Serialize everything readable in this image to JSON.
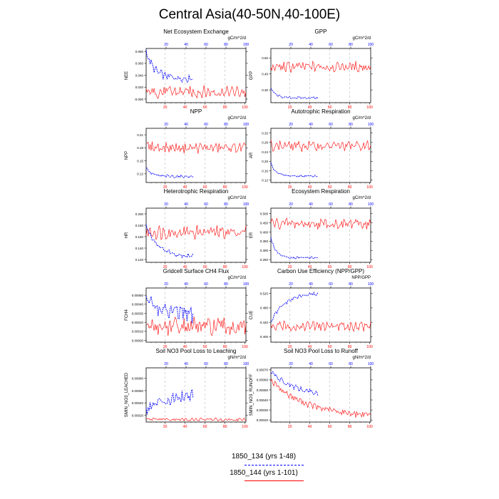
{
  "title": "Central Asia(40-50N,40-100E)",
  "colors": {
    "series_a": "#0000ff",
    "series_b": "#ff0000",
    "grid": "#bbbbbb"
  },
  "legend": {
    "entries": [
      {
        "label": "1850_134 (yrs 1-48)",
        "color": "#0000ff",
        "style": "dashed"
      },
      {
        "label": "1850_144 (yrs 1-101)",
        "color": "#ff0000",
        "style": "solid"
      }
    ]
  },
  "chart_data": [
    {
      "type": "line",
      "title": "Net Ecosystem Exchange",
      "units": "gC/m^2/d",
      "ylabel": "NEE",
      "xlim": [
        1,
        101
      ],
      "xticks": [
        20,
        40,
        60,
        80,
        100
      ],
      "ylim": [
        -0.006,
        0.085
      ],
      "yticks": [
        -0.0,
        0.02,
        0.04,
        0.06,
        0.08
      ],
      "ytick_labels": [
        "-0.000",
        "0.020",
        "0.040",
        "0.060",
        "0.080"
      ],
      "series": [
        {
          "years": 48,
          "start": 0.08,
          "end": 0.035,
          "decay": 8,
          "noise": 0.008
        },
        {
          "years": 101,
          "start": 0.012,
          "end": 0.012,
          "decay": 10,
          "noise": 0.012
        }
      ]
    },
    {
      "type": "line",
      "title": "GPP",
      "units": "gC/m^2/d",
      "ylabel": "GPP",
      "xlim": [
        1,
        101
      ],
      "xticks": [
        20,
        40,
        60,
        80,
        100
      ],
      "ylim": [
        0.22,
        0.56
      ],
      "yticks": [
        0.3,
        0.4,
        0.5
      ],
      "ytick_labels": [
        "0.30",
        "0.40",
        "0.50"
      ],
      "series": [
        {
          "years": 48,
          "start": 0.31,
          "end": 0.25,
          "decay": 5,
          "noise": 0.008
        },
        {
          "years": 101,
          "start": 0.44,
          "end": 0.445,
          "decay": 10,
          "noise": 0.04
        }
      ]
    },
    {
      "type": "line",
      "title": "NPP",
      "units": "gC/m^2/d",
      "ylabel": "NPP",
      "xlim": [
        1,
        101
      ],
      "xticks": [
        20,
        40,
        60,
        80,
        100
      ],
      "ylim": [
        0.1,
        0.225
      ],
      "yticks": [
        0.12,
        0.15,
        0.18,
        0.21
      ],
      "ytick_labels": [
        "0.12",
        "0.15",
        "0.18",
        "0.21"
      ],
      "series": [
        {
          "years": 48,
          "start": 0.135,
          "end": 0.114,
          "decay": 5,
          "noise": 0.004
        },
        {
          "years": 101,
          "start": 0.184,
          "end": 0.18,
          "decay": 10,
          "noise": 0.014
        }
      ]
    },
    {
      "type": "line",
      "title": "Autotrophic Respiration",
      "units": "gC/m^2/d",
      "ylabel": "AR",
      "xlim": [
        1,
        101
      ],
      "xticks": [
        20,
        40,
        60,
        80,
        100
      ],
      "ylim": [
        0.11,
        0.34
      ],
      "yticks": [
        0.12,
        0.16,
        0.2,
        0.24,
        0.28,
        0.32
      ],
      "ytick_labels": [
        "0.12",
        "0.16",
        "0.20",
        "0.24",
        "0.28",
        "0.32"
      ],
      "series": [
        {
          "years": 48,
          "start": 0.19,
          "end": 0.137,
          "decay": 5,
          "noise": 0.005
        },
        {
          "years": 101,
          "start": 0.268,
          "end": 0.265,
          "decay": 10,
          "noise": 0.026
        }
      ]
    },
    {
      "type": "line",
      "title": "Heterotrophic Respiration",
      "units": "gC/m^2/d",
      "ylabel": "HR",
      "xlim": [
        1,
        101
      ],
      "xticks": [
        20,
        40,
        60,
        80,
        100
      ],
      "ylim": [
        0.115,
        0.21
      ],
      "yticks": [
        0.12,
        0.14,
        0.16,
        0.18,
        0.2
      ],
      "ytick_labels": [
        "0.120",
        "0.140",
        "0.160",
        "0.180",
        "0.200"
      ],
      "series": [
        {
          "years": 48,
          "start": 0.18,
          "end": 0.125,
          "decay": 12,
          "noise": 0.005
        },
        {
          "years": 101,
          "start": 0.168,
          "end": 0.168,
          "decay": 10,
          "noise": 0.014
        }
      ]
    },
    {
      "type": "line",
      "title": "Ecosystem Respiration",
      "units": "gC/m^2/d",
      "ylabel": "ER",
      "xlim": [
        1,
        101
      ],
      "xticks": [
        20,
        40,
        60,
        80,
        100
      ],
      "ylim": [
        0.235,
        0.53
      ],
      "yticks": [
        0.25,
        0.3,
        0.35,
        0.4,
        0.45,
        0.5
      ],
      "ytick_labels": [
        "0.250",
        "0.300",
        "0.350",
        "0.400",
        "0.450",
        "0.500"
      ],
      "series": [
        {
          "years": 48,
          "start": 0.37,
          "end": 0.26,
          "decay": 5,
          "noise": 0.008
        },
        {
          "years": 101,
          "start": 0.45,
          "end": 0.445,
          "decay": 10,
          "noise": 0.035
        }
      ]
    },
    {
      "type": "line",
      "title": "Gridcell Surface CH4 Flux",
      "units": "gC/m^2/d",
      "ylabel": "FCH4",
      "xlim": [
        1,
        101
      ],
      "xticks": [
        20,
        40,
        60,
        80,
        100
      ],
      "ylim": [
        -2e-05,
        0.00058
      ],
      "yticks": [
        0.0,
        0.0001,
        0.0002,
        0.0003,
        0.0004,
        0.0005
      ],
      "ytick_labels": [
        "0.00000",
        "0.00010",
        "0.00020",
        "0.00030",
        "0.00040",
        "0.00050"
      ],
      "series": [
        {
          "years": 48,
          "start": 0.00045,
          "end": 0.00028,
          "decay": 15,
          "noise": 0.00012
        },
        {
          "years": 101,
          "start": 0.00016,
          "end": 0.00015,
          "decay": 10,
          "noise": 0.00012
        }
      ]
    },
    {
      "type": "line",
      "title": "Carbon Use Efficiency (NPP/GPP)",
      "units": "NPP/GPP",
      "ylabel": "CUE",
      "xlim": [
        1,
        101
      ],
      "xticks": [
        20,
        40,
        60,
        80,
        100
      ],
      "ylim": [
        0.385,
        0.535
      ],
      "yticks": [
        0.4,
        0.44,
        0.48,
        0.52
      ],
      "ytick_labels": [
        "0.400",
        "0.440",
        "0.480",
        "0.520"
      ],
      "series": [
        {
          "years": 48,
          "start": 0.44,
          "end": 0.522,
          "decay": 14,
          "noise": 0.006
        },
        {
          "years": 101,
          "start": 0.425,
          "end": 0.43,
          "decay": 10,
          "noise": 0.016
        }
      ]
    },
    {
      "type": "line",
      "title": "Soil NO3 Pool Loss to Leaching",
      "units": "gN/m^2/d",
      "ylabel": "SMIN_NO3_LEACHED",
      "xlim": [
        1,
        101
      ],
      "xticks": [
        20,
        40,
        60,
        80,
        100
      ],
      "ylim": [
        9e-05,
        0.00097
      ],
      "yticks": [
        0.0002,
        0.0004,
        0.0006,
        0.0008
      ],
      "ytick_labels": [
        "0.00020",
        "0.00040",
        "0.00060",
        "0.00080"
      ],
      "series": [
        {
          "years": 48,
          "start": 0.0003,
          "end": 0.0006,
          "decay": 30,
          "noise": 0.00012
        },
        {
          "years": 101,
          "start": 0.00013,
          "end": 0.00013,
          "decay": 10,
          "noise": 3e-05
        }
      ]
    },
    {
      "type": "line",
      "title": "Soil NO3 Pool Loss to Runoff",
      "units": "gN/m^2/d",
      "ylabel": "SMIN_NO3_RUNOFF",
      "xlim": [
        1,
        101
      ],
      "xticks": [
        20,
        40,
        60,
        80,
        100
      ],
      "ylim": [
        0.00018,
        0.00072
      ],
      "yticks": [
        0.0002,
        0.0003,
        0.0004,
        0.0005,
        0.0006,
        0.0007
      ],
      "ytick_labels": [
        "0.00020",
        "0.00030",
        "0.00040",
        "0.00050",
        "0.00060",
        "0.00070"
      ],
      "series": [
        {
          "years": 48,
          "start": 0.00068,
          "end": 0.00043,
          "decay": 25,
          "noise": 3e-05
        },
        {
          "years": 101,
          "start": 0.0006,
          "end": 0.00023,
          "decay": 35,
          "noise": 4e-05
        }
      ]
    }
  ]
}
